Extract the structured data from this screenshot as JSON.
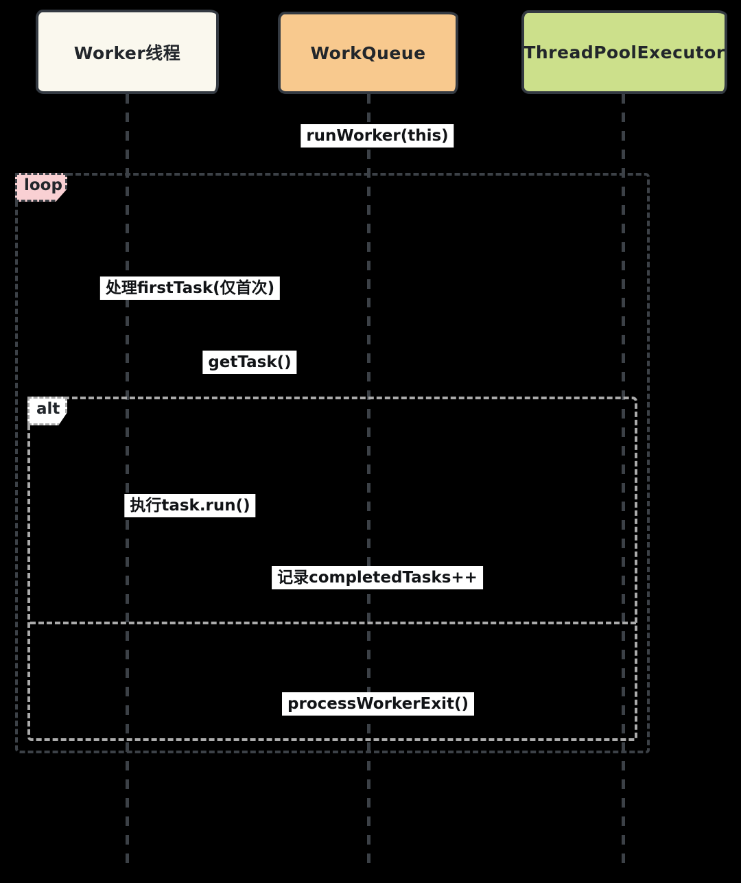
{
  "participants": [
    {
      "label": "Worker线程",
      "fill": "#FAF8EE"
    },
    {
      "label": "WorkQueue",
      "fill": "#F8C98E"
    },
    {
      "label": "ThreadPoolExecutor",
      "fill": "#CCE08B"
    }
  ],
  "frames": {
    "loop": {
      "label": "loop",
      "fill": "#F9D0D3",
      "border": "#3C4147"
    },
    "alt": {
      "label": "alt",
      "fill": "#FFFFFF",
      "border": "#ABABAB"
    }
  },
  "messages": [
    {
      "label": "runWorker(this)"
    },
    {
      "label": "处理firstTask(仅首次)"
    },
    {
      "label": "getTask()"
    },
    {
      "label": "执行task.run()"
    },
    {
      "label": "记录completedTasks++"
    },
    {
      "label": "processWorkerExit()"
    }
  ],
  "colors": {
    "background": "#000000",
    "lifeline_dash": "#3C4147",
    "alt_dash": "#ABABAB",
    "box_border": "#343A42",
    "chip_bg": "#FFFFFF",
    "text": "#111316"
  }
}
